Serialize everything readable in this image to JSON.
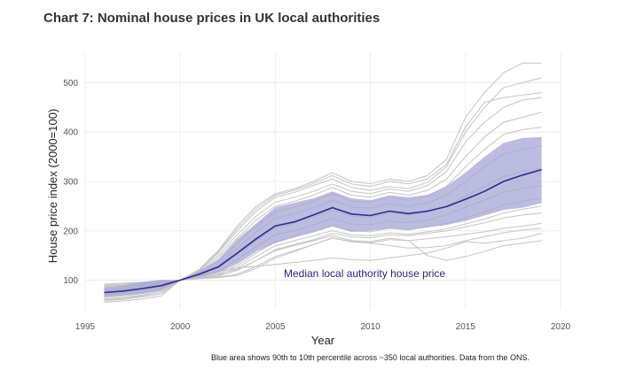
{
  "chart_data": {
    "type": "line",
    "title": "Chart 7: Nominal house prices in UK local authorities",
    "xlabel": "Year",
    "ylabel": "House price index (2000=100)",
    "xlim": [
      1995,
      2020
    ],
    "ylim": [
      40,
      560
    ],
    "xticks": [
      1995,
      2000,
      2005,
      2010,
      2015,
      2020
    ],
    "yticks": [
      100,
      200,
      300,
      400,
      500
    ],
    "grid": true,
    "annotation": "Median local authority house price",
    "caption": "Blue area shows 90th to 10th percentile across ~350 local authorities. Data from the ONS.",
    "colors": {
      "median": "#2e2a8a",
      "band": "#a6a6d6",
      "authority": "#c4c4c4",
      "grid": "#ececec"
    },
    "x": [
      1996,
      1997,
      1998,
      1999,
      2000,
      2001,
      2002,
      2003,
      2004,
      2005,
      2006,
      2007,
      2008,
      2009,
      2010,
      2011,
      2012,
      2013,
      2014,
      2015,
      2016,
      2017,
      2018,
      2019
    ],
    "series": [
      {
        "values": [
          75,
          78,
          83,
          89,
          100,
          112,
          127,
          155,
          184,
          210,
          218,
          232,
          247,
          234,
          231,
          240,
          235,
          240,
          249,
          264,
          280,
          300,
          313,
          324
        ]
      }
    ],
    "band": {
      "upper": [
        85,
        89,
        96,
        101,
        100,
        118,
        142,
        183,
        215,
        248,
        257,
        266,
        280,
        266,
        262,
        272,
        268,
        273,
        290,
        318,
        350,
        378,
        388,
        390
      ],
      "lower": [
        66,
        69,
        73,
        80,
        100,
        107,
        115,
        133,
        158,
        175,
        187,
        197,
        209,
        198,
        200,
        205,
        202,
        207,
        212,
        220,
        231,
        242,
        247,
        256
      ]
    },
    "authority_lines": [
      [
        55,
        58,
        62,
        68,
        100,
        122,
        160,
        210,
        250,
        275,
        285,
        300,
        318,
        300,
        295,
        305,
        300,
        312,
        345,
        430,
        480,
        520,
        540,
        540
      ],
      [
        60,
        63,
        68,
        75,
        100,
        120,
        155,
        200,
        240,
        268,
        278,
        292,
        305,
        288,
        282,
        290,
        285,
        298,
        330,
        400,
        450,
        490,
        500,
        510
      ],
      [
        62,
        65,
        70,
        78,
        100,
        118,
        150,
        192,
        230,
        258,
        268,
        280,
        295,
        280,
        275,
        285,
        280,
        292,
        320,
        380,
        420,
        450,
        465,
        470
      ],
      [
        65,
        68,
        73,
        80,
        100,
        116,
        145,
        185,
        222,
        250,
        260,
        272,
        288,
        272,
        268,
        278,
        272,
        282,
        305,
        350,
        390,
        420,
        430,
        440
      ],
      [
        68,
        71,
        76,
        82,
        100,
        114,
        138,
        175,
        210,
        238,
        248,
        260,
        275,
        260,
        258,
        268,
        262,
        270,
        290,
        330,
        365,
        395,
        405,
        410
      ],
      [
        72,
        75,
        80,
        85,
        100,
        113,
        132,
        165,
        198,
        225,
        235,
        247,
        262,
        248,
        246,
        255,
        250,
        256,
        272,
        300,
        330,
        355,
        365,
        372
      ],
      [
        78,
        81,
        86,
        90,
        100,
        111,
        125,
        152,
        180,
        205,
        215,
        228,
        242,
        230,
        228,
        236,
        232,
        238,
        250,
        270,
        290,
        310,
        320,
        328
      ],
      [
        82,
        85,
        90,
        94,
        100,
        109,
        118,
        142,
        168,
        192,
        200,
        212,
        225,
        214,
        212,
        220,
        216,
        222,
        232,
        248,
        262,
        278,
        286,
        292
      ],
      [
        85,
        88,
        92,
        96,
        100,
        107,
        113,
        130,
        155,
        178,
        188,
        198,
        210,
        200,
        198,
        205,
        202,
        208,
        215,
        226,
        238,
        252,
        260,
        266
      ],
      [
        88,
        90,
        94,
        97,
        100,
        105,
        108,
        120,
        140,
        162,
        172,
        182,
        195,
        188,
        186,
        192,
        190,
        195,
        200,
        208,
        216,
        226,
        232,
        236
      ],
      [
        90,
        92,
        95,
        98,
        100,
        104,
        106,
        112,
        128,
        148,
        160,
        172,
        185,
        178,
        176,
        182,
        180,
        184,
        188,
        193,
        198,
        205,
        210,
        215
      ],
      [
        92,
        94,
        96,
        98,
        100,
        103,
        105,
        110,
        124,
        145,
        158,
        172,
        186,
        178,
        175,
        170,
        165,
        166,
        170,
        180,
        188,
        196,
        202,
        205
      ],
      [
        70,
        74,
        80,
        86,
        100,
        110,
        118,
        125,
        128,
        132,
        136,
        140,
        145,
        142,
        140,
        145,
        150,
        155,
        165,
        178,
        175,
        180,
        185,
        195
      ],
      [
        80,
        83,
        88,
        92,
        100,
        108,
        112,
        122,
        140,
        160,
        170,
        180,
        190,
        180,
        178,
        185,
        180,
        150,
        140,
        148,
        158,
        170,
        175,
        180
      ],
      [
        58,
        61,
        66,
        72,
        100,
        121,
        158,
        205,
        245,
        272,
        282,
        296,
        312,
        295,
        290,
        300,
        295,
        305,
        335,
        410,
        460,
        470,
        475,
        480
      ],
      [
        86,
        89,
        93,
        95,
        100,
        106,
        110,
        125,
        148,
        170,
        180,
        190,
        200,
        192,
        190,
        196,
        193,
        198,
        204,
        214,
        224,
        236,
        244,
        250
      ]
    ]
  }
}
